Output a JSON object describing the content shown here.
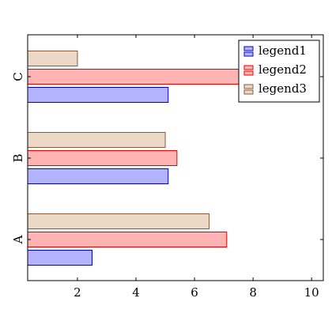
{
  "chart_data": {
    "type": "bar",
    "orientation": "horizontal",
    "categories": [
      "A",
      "B",
      "C"
    ],
    "series": [
      {
        "name": "legend1",
        "values": [
          2.5,
          5.1,
          5.1
        ],
        "fill": "#b3b3ff",
        "stroke": "#0000cc"
      },
      {
        "name": "legend2",
        "values": [
          7.1,
          5.4,
          7.9
        ],
        "fill": "#ffb3b3",
        "stroke": "#e60000"
      },
      {
        "name": "legend3",
        "values": [
          6.5,
          5.0,
          2.0
        ],
        "fill": "#ebd9c6",
        "stroke": "#8c5a3c"
      }
    ],
    "xlim": [
      0.3,
      10.4
    ],
    "xticks": [
      2,
      4,
      6,
      8,
      10
    ],
    "grid": false,
    "legend_position": "top-right",
    "title": "",
    "xlabel": "",
    "ylabel": ""
  }
}
